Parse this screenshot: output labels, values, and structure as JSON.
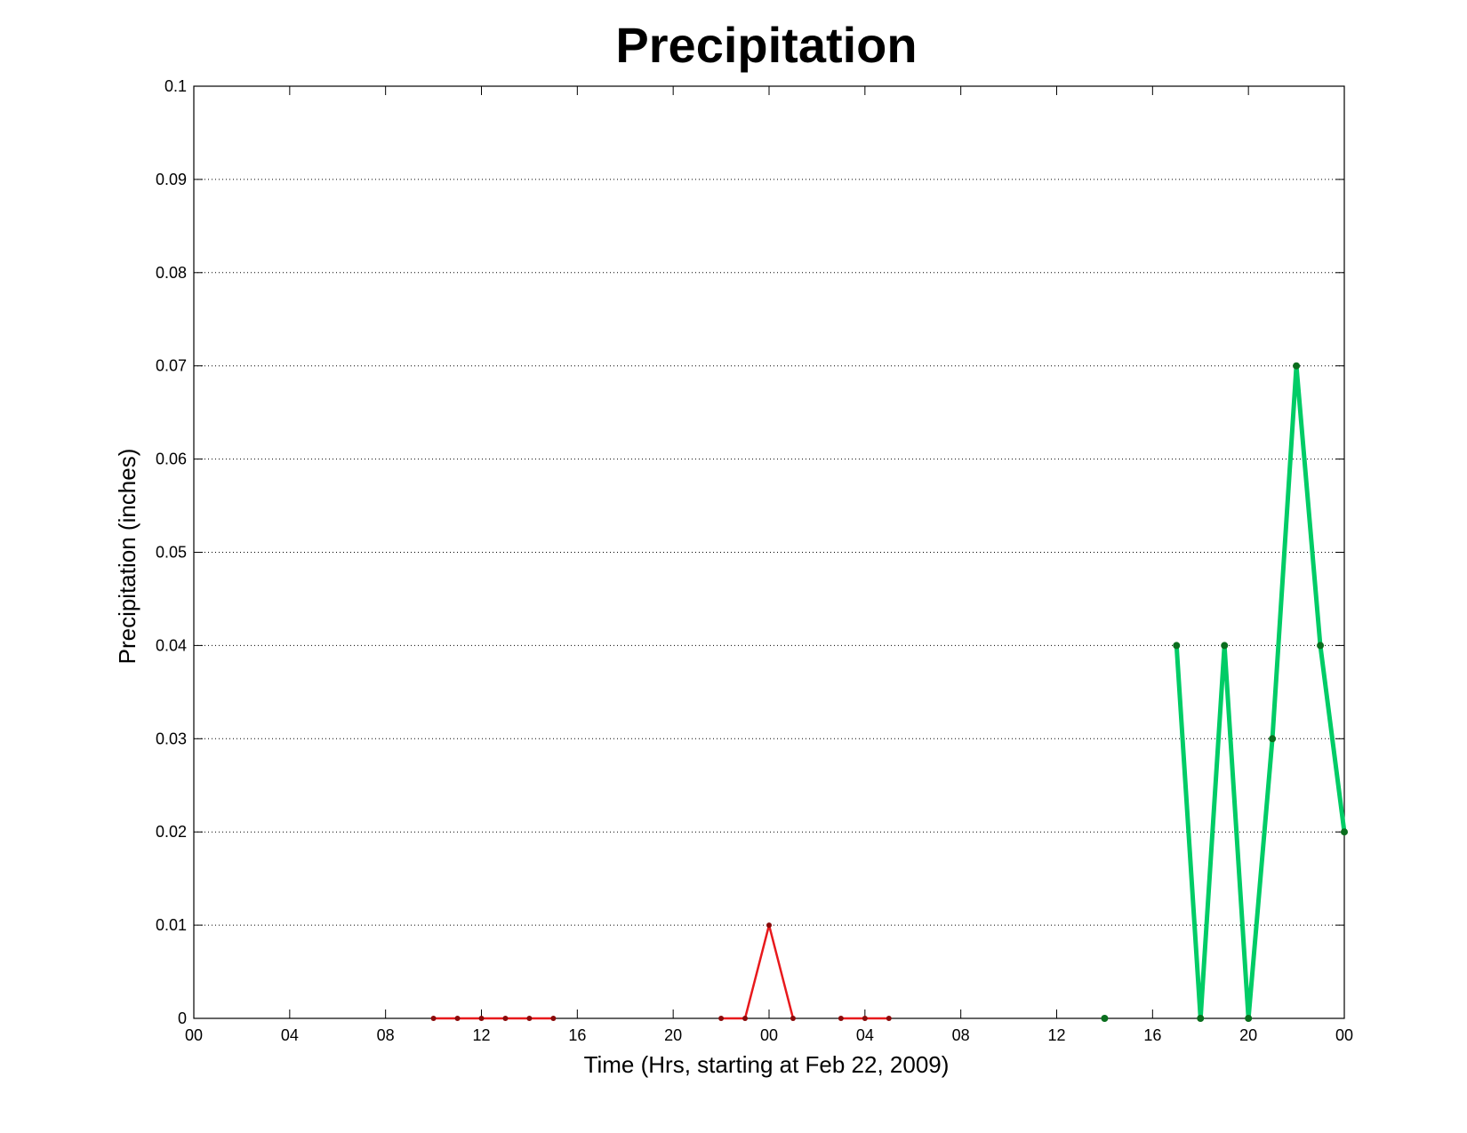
{
  "chart_data": {
    "type": "line",
    "title": "Precipitation",
    "xlabel": "Time (Hrs, starting at Feb 22, 2009)",
    "ylabel": "Precipitation (inches)",
    "x_unit": "hours",
    "xlim": [
      0,
      48
    ],
    "ylim": [
      0,
      0.1
    ],
    "grid": true,
    "x_ticks": [
      {
        "value": 0,
        "label": "00"
      },
      {
        "value": 4,
        "label": "04"
      },
      {
        "value": 8,
        "label": "08"
      },
      {
        "value": 12,
        "label": "12"
      },
      {
        "value": 16,
        "label": "16"
      },
      {
        "value": 20,
        "label": "20"
      },
      {
        "value": 24,
        "label": "00"
      },
      {
        "value": 28,
        "label": "04"
      },
      {
        "value": 32,
        "label": "08"
      },
      {
        "value": 36,
        "label": "12"
      },
      {
        "value": 40,
        "label": "16"
      },
      {
        "value": 44,
        "label": "20"
      },
      {
        "value": 48,
        "label": "00"
      }
    ],
    "y_ticks": [
      {
        "value": 0,
        "label": "0"
      },
      {
        "value": 0.01,
        "label": "0.01"
      },
      {
        "value": 0.02,
        "label": "0.02"
      },
      {
        "value": 0.03,
        "label": "0.03"
      },
      {
        "value": 0.04,
        "label": "0.04"
      },
      {
        "value": 0.05,
        "label": "0.05"
      },
      {
        "value": 0.06,
        "label": "0.06"
      },
      {
        "value": 0.07,
        "label": "0.07"
      },
      {
        "value": 0.08,
        "label": "0.08"
      },
      {
        "value": 0.09,
        "label": "0.09"
      },
      {
        "value": 0.1,
        "label": "0.1"
      }
    ],
    "series": [
      {
        "color": "#e8191c",
        "marker_color": "#8a0a0a",
        "segments": [
          [
            [
              10,
              0
            ],
            [
              11,
              0
            ],
            [
              12,
              0
            ],
            [
              13,
              0
            ],
            [
              14,
              0
            ],
            [
              15,
              0
            ]
          ],
          [
            [
              22,
              0
            ],
            [
              23,
              0
            ],
            [
              24,
              0.01
            ],
            [
              25,
              0
            ]
          ],
          [
            [
              27,
              0
            ],
            [
              28,
              0
            ],
            [
              29,
              0
            ]
          ]
        ]
      },
      {
        "color": "#00cc66",
        "marker_color": "#0a6e1e",
        "segments": [
          [
            [
              38,
              0
            ]
          ],
          [
            [
              41,
              0.04
            ],
            [
              42,
              0
            ],
            [
              43,
              0.04
            ],
            [
              44,
              0
            ],
            [
              45,
              0.03
            ],
            [
              46,
              0.07
            ],
            [
              47,
              0.04
            ],
            [
              48,
              0.02
            ]
          ]
        ]
      }
    ]
  }
}
